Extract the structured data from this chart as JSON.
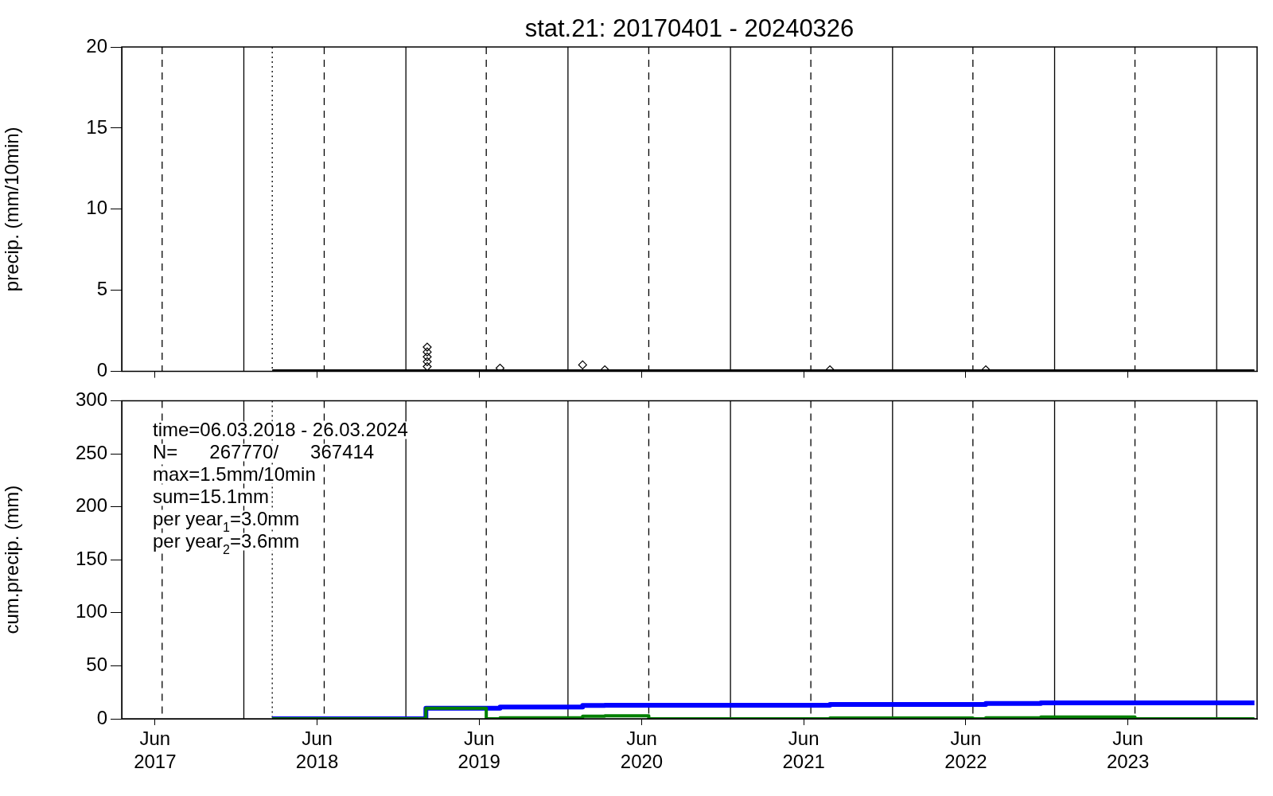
{
  "chart_data": [
    {
      "type": "scatter",
      "title": "stat.21: 20170401 - 20240326",
      "ylabel": "precip. (mm/10min)",
      "xlim": [
        "2017-04-01",
        "2024-04-01"
      ],
      "ylim": [
        0,
        20
      ],
      "yticks": [
        0,
        5,
        10,
        15,
        20
      ],
      "xticks": [
        {
          "value": "2017-06-15",
          "label": null
        },
        {
          "value": "2018-06-15",
          "label": null
        },
        {
          "value": "2019-06-15",
          "label": null
        },
        {
          "value": "2020-06-15",
          "label": null
        },
        {
          "value": "2021-06-15",
          "label": null
        },
        {
          "value": "2022-06-15",
          "label": null
        },
        {
          "value": "2023-06-15",
          "label": null
        }
      ],
      "tick_labels": "y",
      "grid": false,
      "legend": false,
      "series": [
        {
          "type": "line",
          "color": "#000000",
          "marker": "none",
          "x": [
            "2018-03-06",
            "2024-03-26"
          ],
          "values": [
            0,
            0
          ]
        },
        {
          "color": "#000000",
          "marker": "diamond",
          "x": [
            "2019-02-18",
            "2019-02-18",
            "2019-02-18",
            "2019-02-18",
            "2019-02-18",
            "2019-08-01",
            "2020-02-03",
            "2020-03-24",
            "2021-08-13",
            "2022-07-30"
          ],
          "values": [
            1.5,
            1.2,
            0.9,
            0.6,
            0.3,
            0.2,
            0.4,
            0.1,
            0.1,
            0.1
          ]
        }
      ],
      "ref_lines": [
        {
          "axis": "x",
          "value": "2018-03-06",
          "line_style": "dotted",
          "color": "#000000"
        },
        {
          "axis": "x",
          "value": "2017-07-01",
          "line_style": "dashed",
          "color": "#000000"
        },
        {
          "axis": "x",
          "value": "2018-07-01",
          "line_style": "dashed",
          "color": "#000000"
        },
        {
          "axis": "x",
          "value": "2019-07-01",
          "line_style": "dashed",
          "color": "#000000"
        },
        {
          "axis": "x",
          "value": "2020-07-01",
          "line_style": "dashed",
          "color": "#000000"
        },
        {
          "axis": "x",
          "value": "2021-07-01",
          "line_style": "dashed",
          "color": "#000000"
        },
        {
          "axis": "x",
          "value": "2022-07-01",
          "line_style": "dashed",
          "color": "#000000"
        },
        {
          "axis": "x",
          "value": "2023-07-01",
          "line_style": "dashed",
          "color": "#000000"
        },
        {
          "axis": "x",
          "value": "2018-01-01",
          "line_style": "solid",
          "color": "#000000"
        },
        {
          "axis": "x",
          "value": "2019-01-01",
          "line_style": "solid",
          "color": "#000000"
        },
        {
          "axis": "x",
          "value": "2020-01-01",
          "line_style": "solid",
          "color": "#000000"
        },
        {
          "axis": "x",
          "value": "2021-01-01",
          "line_style": "solid",
          "color": "#000000"
        },
        {
          "axis": "x",
          "value": "2022-01-01",
          "line_style": "solid",
          "color": "#000000"
        },
        {
          "axis": "x",
          "value": "2023-01-01",
          "line_style": "solid",
          "color": "#000000"
        },
        {
          "axis": "x",
          "value": "2024-01-01",
          "line_style": "solid",
          "color": "#000000"
        }
      ]
    },
    {
      "type": "step",
      "ylabel": "cum.precip. (mm)",
      "xlim": [
        "2017-04-01",
        "2024-04-01"
      ],
      "ylim": [
        0,
        300
      ],
      "yticks": [
        0,
        50,
        100,
        150,
        200,
        250,
        300
      ],
      "xticks": [
        {
          "value": "2017-06-15",
          "label": "Jun 2017"
        },
        {
          "value": "2018-06-15",
          "label": "Jun 2018"
        },
        {
          "value": "2019-06-15",
          "label": "Jun 2019"
        },
        {
          "value": "2020-06-15",
          "label": "Jun 2020"
        },
        {
          "value": "2021-06-15",
          "label": "Jun 2021"
        },
        {
          "value": "2022-06-15",
          "label": "Jun 2022"
        },
        {
          "value": "2023-06-15",
          "label": "Jun 2023"
        }
      ],
      "grid": false,
      "legend": false,
      "series": [
        {
          "color": "#0000ff",
          "x": [
            "2018-03-06",
            "2019-02-15",
            "2019-08-01",
            "2020-02-03",
            "2020-03-24",
            "2021-08-13",
            "2022-07-30",
            "2022-12-01",
            "2024-03-26"
          ],
          "values": [
            0,
            10,
            11,
            12.5,
            12.8,
            13.5,
            14.5,
            15.1,
            15.1
          ]
        },
        {
          "color": "#008000",
          "x": [
            "2018-03-06",
            "2019-02-15",
            "2019-07-01",
            "2019-08-01",
            "2020-02-03",
            "2020-03-24",
            "2020-07-01",
            "2021-08-13",
            "2022-07-01",
            "2022-07-30",
            "2022-12-01",
            "2023-07-01",
            "2024-03-26"
          ],
          "values": [
            0,
            10,
            0,
            1,
            2.5,
            2.8,
            0,
            0.7,
            0,
            1,
            1.6,
            0,
            0
          ]
        }
      ],
      "annotations": [
        "time=06.03.2018 - 26.03.2024",
        "N=      267770/      367414",
        "max=1.5mm/10min",
        "sum=15.1mm",
        "per year$_{1}$=3.0mm",
        "per year$_{2}$=3.6mm"
      ],
      "ref_lines": [
        {
          "axis": "x",
          "value": "2018-03-06",
          "line_style": "dotted",
          "color": "#000000"
        },
        {
          "axis": "x",
          "value": "2017-07-01",
          "line_style": "dashed",
          "color": "#000000"
        },
        {
          "axis": "x",
          "value": "2018-07-01",
          "line_style": "dashed",
          "color": "#000000"
        },
        {
          "axis": "x",
          "value": "2019-07-01",
          "line_style": "dashed",
          "color": "#000000"
        },
        {
          "axis": "x",
          "value": "2020-07-01",
          "line_style": "dashed",
          "color": "#000000"
        },
        {
          "axis": "x",
          "value": "2021-07-01",
          "line_style": "dashed",
          "color": "#000000"
        },
        {
          "axis": "x",
          "value": "2022-07-01",
          "line_style": "dashed",
          "color": "#000000"
        },
        {
          "axis": "x",
          "value": "2023-07-01",
          "line_style": "dashed",
          "color": "#000000"
        },
        {
          "axis": "x",
          "value": "2018-01-01",
          "line_style": "solid",
          "color": "#000000"
        },
        {
          "axis": "x",
          "value": "2019-01-01",
          "line_style": "solid",
          "color": "#000000"
        },
        {
          "axis": "x",
          "value": "2020-01-01",
          "line_style": "solid",
          "color": "#000000"
        },
        {
          "axis": "x",
          "value": "2021-01-01",
          "line_style": "solid",
          "color": "#000000"
        },
        {
          "axis": "x",
          "value": "2022-01-01",
          "line_style": "solid",
          "color": "#000000"
        },
        {
          "axis": "x",
          "value": "2023-01-01",
          "line_style": "solid",
          "color": "#000000"
        },
        {
          "axis": "x",
          "value": "2024-01-01",
          "line_style": "solid",
          "color": "#000000"
        }
      ]
    }
  ]
}
